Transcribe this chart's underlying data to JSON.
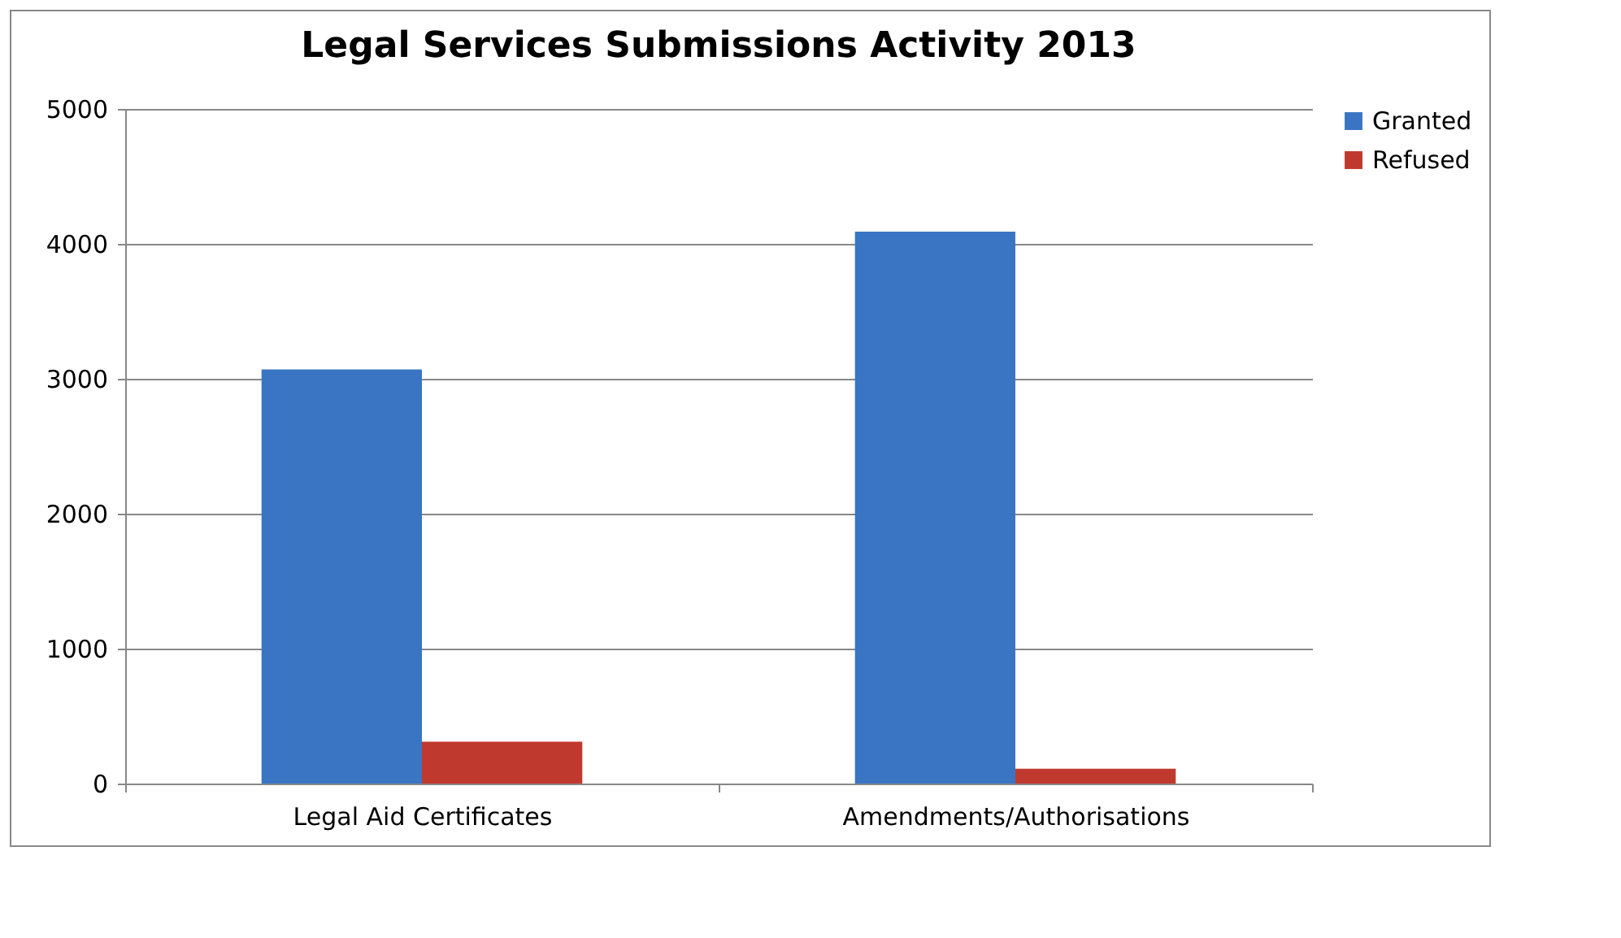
{
  "chart_data": {
    "type": "bar",
    "title": "Legal Services Submissions Activity 2013",
    "categories": [
      "Legal Aid Certificates",
      "Amendments/Authorisations"
    ],
    "series": [
      {
        "name": "Granted",
        "color": "#3a75c4",
        "values": [
          3070,
          4090
        ]
      },
      {
        "name": "Refused",
        "color": "#c0392f",
        "values": [
          310,
          110
        ]
      }
    ],
    "ylim": [
      0,
      5000
    ],
    "yticks": [
      0,
      1000,
      2000,
      3000,
      4000,
      5000
    ],
    "grid": "y",
    "legend": "right"
  }
}
